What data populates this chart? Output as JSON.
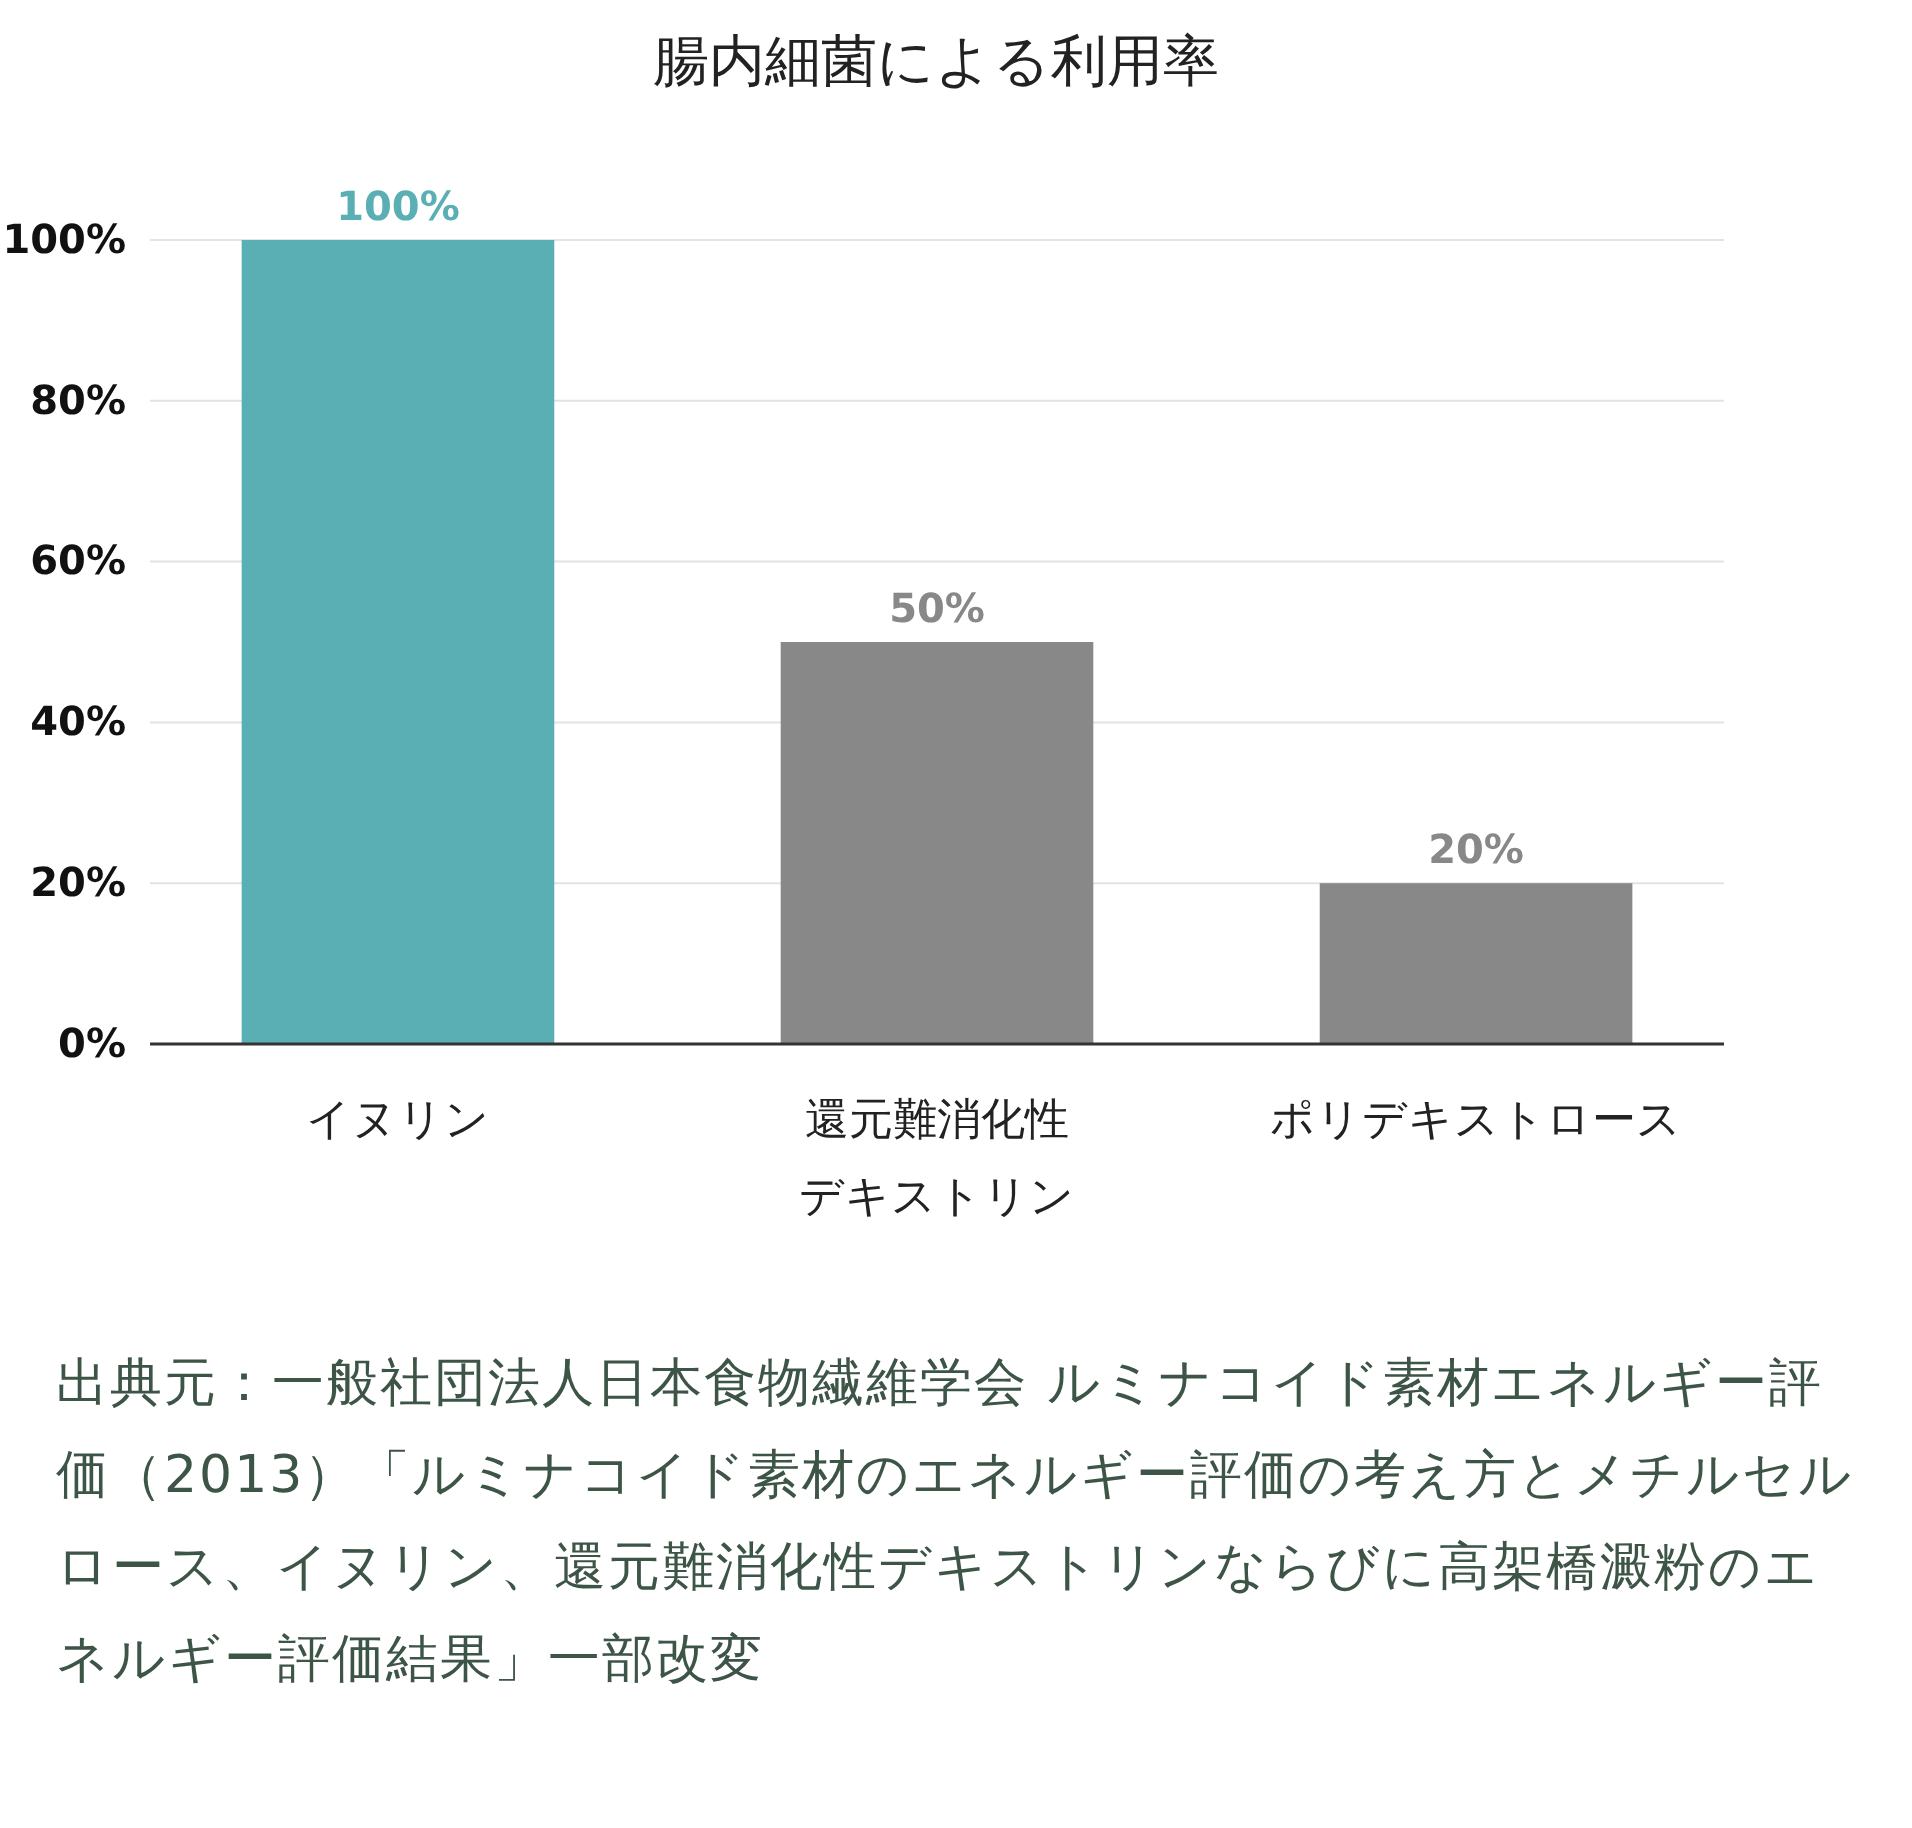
{
  "chart_data": {
    "type": "bar",
    "title": "腸内細菌による利用率",
    "categories": [
      "イヌリン",
      "還元難消化性デキストリン",
      "ポリデキストロース"
    ],
    "values": [
      100,
      50,
      20
    ],
    "colors": [
      "#5aafb4",
      "#888888",
      "#888888"
    ],
    "ylim": [
      0,
      100
    ],
    "yticks": [
      {
        "value": 0,
        "label": "0%"
      },
      {
        "value": 20,
        "label": "20%"
      },
      {
        "value": 40,
        "label": "40%"
      },
      {
        "value": 60,
        "label": "60%"
      },
      {
        "value": 80,
        "label": "80%"
      },
      {
        "value": 100,
        "label": "100%"
      }
    ],
    "grid": "y",
    "value_labels": [
      "100%",
      "50%",
      "20%"
    ],
    "annotations": [
      "出典元：一般社団法人日本食物繊維学会 ルミナコイド素材エネルギー評価（2013）「ルミナコイド素材のエネルギー評価の考え方とメチルセルロース、イヌリン、還元難消化性デキストリンならびに高架橋澱粉のエネルギー評価結果」一部改変"
    ]
  }
}
